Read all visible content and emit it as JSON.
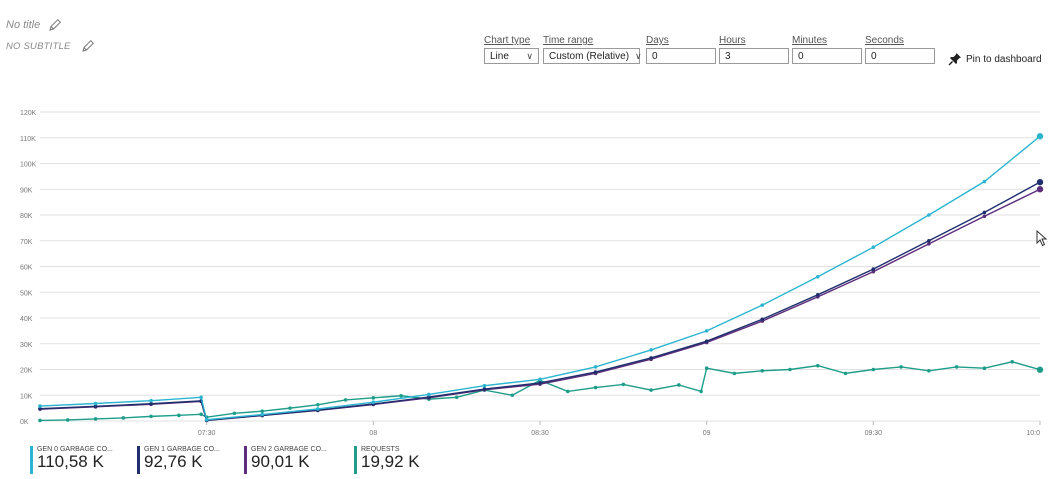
{
  "header": {
    "title": "No title",
    "subtitle": "NO SUBTITLE"
  },
  "controls": {
    "chart_type": {
      "label": "Chart type",
      "value": "Line"
    },
    "time_range": {
      "label": "Time range",
      "value": "Custom (Relative)"
    },
    "days": {
      "label": "Days",
      "value": "0"
    },
    "hours": {
      "label": "Hours",
      "value": "3"
    },
    "minutes": {
      "label": "Minutes",
      "value": "0"
    },
    "seconds": {
      "label": "Seconds",
      "value": "0"
    },
    "pin_label": "Pin to dashboard"
  },
  "icons": {
    "title_edit": "pencil-icon",
    "subtitle_edit": "pencil-icon",
    "pin": "pin-icon",
    "dropdown": "chevron-down-icon",
    "cursor": "mouse-cursor-icon"
  },
  "colors": {
    "gen0": "#2bb5d1",
    "gen1": "#1f2f6e",
    "gen2": "#5b2d7b",
    "requests": "#1e9e8a",
    "grid": "#e2e2e2",
    "axis_text": "#777777"
  },
  "legend": [
    {
      "name": "GEN 0 GARBAGE CO...",
      "value": "110,58 K"
    },
    {
      "name": "GEN 1 GARBAGE CO...",
      "value": "92,76 K"
    },
    {
      "name": "GEN 2 GARBAGE CO...",
      "value": "90,01 K"
    },
    {
      "name": "REQUESTS",
      "value": "19,92 K"
    }
  ],
  "chart_data": {
    "type": "line",
    "xlim": [
      "07:00",
      "10:00"
    ],
    "ylim": [
      0,
      120000
    ],
    "y_ticks": [
      "0K",
      "10K",
      "20K",
      "30K",
      "40K",
      "50K",
      "60K",
      "70K",
      "80K",
      "90K",
      "100K",
      "110K",
      "120K"
    ],
    "x_ticks": [
      "07:30",
      "08",
      "08:30",
      "09",
      "09:30",
      "10:0"
    ],
    "grid": true,
    "series": [
      {
        "name": "GEN 0 GARBAGE CO...",
        "color": "#2bb5d1",
        "x": [
          "07:00",
          "07:10",
          "07:20",
          "07:29",
          "07:30",
          "07:40",
          "07:50",
          "08:00",
          "08:10",
          "08:20",
          "08:30",
          "08:40",
          "08:50",
          "09:00",
          "09:10",
          "09:20",
          "09:30",
          "09:40",
          "09:50",
          "10:00"
        ],
        "y": [
          5800,
          6800,
          7900,
          9200,
          500,
          2500,
          4700,
          7300,
          10300,
          13700,
          16200,
          21000,
          27600,
          35000,
          45000,
          56000,
          67500,
          80000,
          93000,
          110580
        ]
      },
      {
        "name": "GEN 1 GARBAGE CO...",
        "color": "#1f2f6e",
        "x": [
          "07:00",
          "07:10",
          "07:20",
          "07:29",
          "07:30",
          "07:40",
          "07:50",
          "08:00",
          "08:10",
          "08:20",
          "08:30",
          "08:40",
          "08:50",
          "09:00",
          "09:10",
          "09:20",
          "09:30",
          "09:40",
          "09:50",
          "10:00"
        ],
        "y": [
          4800,
          5700,
          6700,
          7800,
          300,
          2200,
          4200,
          6600,
          9300,
          12400,
          14800,
          19000,
          24500,
          31000,
          39500,
          49000,
          59000,
          70000,
          81000,
          92760
        ]
      },
      {
        "name": "GEN 2 GARBAGE CO...",
        "color": "#5b2d7b",
        "x": [
          "07:00",
          "07:10",
          "07:20",
          "07:29",
          "07:30",
          "07:40",
          "07:50",
          "08:00",
          "08:10",
          "08:20",
          "08:30",
          "08:40",
          "08:50",
          "09:00",
          "09:10",
          "09:20",
          "09:30",
          "09:40",
          "09:50",
          "10:00"
        ],
        "y": [
          4600,
          5500,
          6500,
          7600,
          200,
          2100,
          4100,
          6400,
          9000,
          12100,
          14300,
          18500,
          24000,
          30500,
          38800,
          48200,
          58000,
          68800,
          79500,
          90010
        ]
      },
      {
        "name": "REQUESTS",
        "color": "#1e9e8a",
        "x": [
          "07:00",
          "07:05",
          "07:10",
          "07:15",
          "07:20",
          "07:25",
          "07:29",
          "07:30",
          "07:35",
          "07:40",
          "07:45",
          "07:50",
          "07:55",
          "08:00",
          "08:05",
          "08:10",
          "08:15",
          "08:20",
          "08:25",
          "08:30",
          "08:35",
          "08:40",
          "08:45",
          "08:50",
          "08:55",
          "08:59",
          "09:00",
          "09:05",
          "09:10",
          "09:15",
          "09:20",
          "09:25",
          "09:30",
          "09:35",
          "09:40",
          "09:45",
          "09:50",
          "09:55",
          "10:00"
        ],
        "y": [
          200,
          400,
          800,
          1200,
          1800,
          2200,
          2600,
          1500,
          3000,
          3800,
          5000,
          6300,
          8200,
          9000,
          9800,
          8500,
          9200,
          12000,
          10000,
          15800,
          11500,
          13000,
          14200,
          12000,
          14000,
          11500,
          20500,
          18500,
          19500,
          20000,
          21500,
          18500,
          20000,
          21000,
          19500,
          21000,
          20500,
          23000,
          19920
        ]
      }
    ]
  }
}
